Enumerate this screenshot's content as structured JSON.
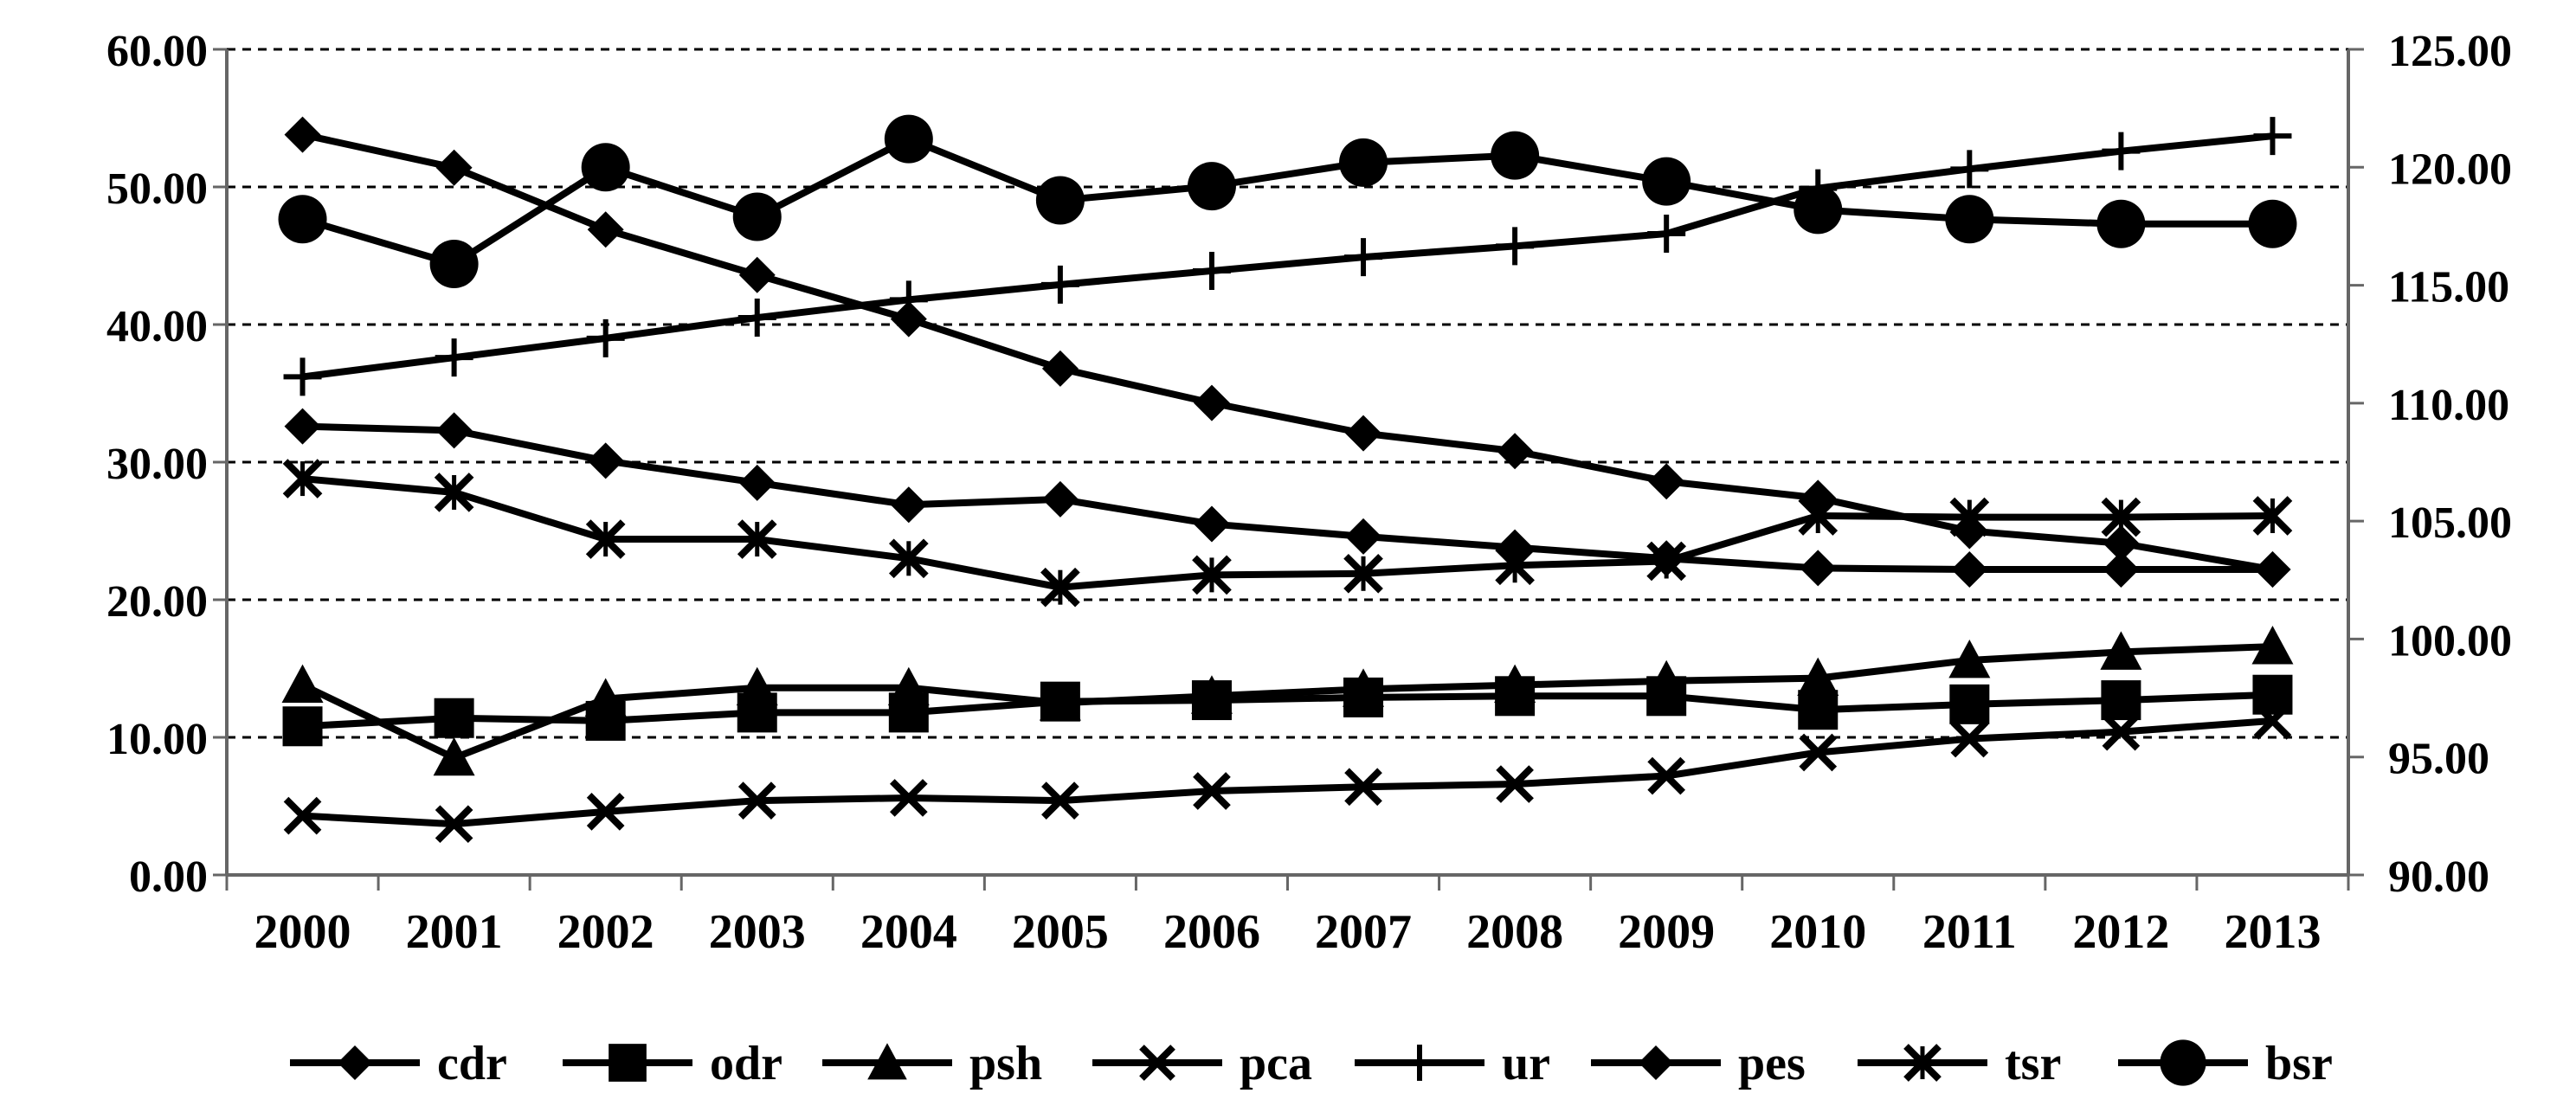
{
  "chart_data": {
    "type": "line",
    "title": "",
    "xlabel": "",
    "ylabel": "",
    "categories": [
      "2000",
      "2001",
      "2002",
      "2003",
      "2004",
      "2005",
      "2006",
      "2007",
      "2008",
      "2009",
      "2010",
      "2011",
      "2012",
      "2013"
    ],
    "y_left": {
      "range": [
        0,
        60
      ],
      "ticks": [
        "0.00",
        "10.00",
        "20.00",
        "30.00",
        "40.00",
        "50.00",
        "60.00"
      ]
    },
    "y_right": {
      "range": [
        90,
        125
      ],
      "ticks": [
        "90.00",
        "95.00",
        "100.00",
        "105.00",
        "110.00",
        "115.00",
        "120.00",
        "125.00"
      ]
    },
    "grid": "horizontal dashed",
    "legend_position": "bottom",
    "series": [
      {
        "name": "cdr",
        "marker": "diamond",
        "axis": "left",
        "values": [
          53.8,
          51.4,
          46.9,
          43.6,
          40.4,
          36.8,
          34.3,
          32.1,
          30.8,
          28.6,
          27.4,
          25.0,
          24.1,
          22.2
        ]
      },
      {
        "name": "odr",
        "marker": "square",
        "axis": "left",
        "values": [
          10.8,
          11.4,
          11.2,
          11.8,
          11.8,
          12.6,
          12.7,
          12.9,
          13.0,
          13.0,
          12.0,
          12.4,
          12.7,
          13.1
        ]
      },
      {
        "name": "psh",
        "marker": "triangle",
        "axis": "left",
        "values": [
          13.8,
          8.5,
          12.8,
          13.6,
          13.6,
          12.5,
          13.0,
          13.5,
          13.8,
          14.1,
          14.3,
          15.6,
          16.2,
          16.6
        ]
      },
      {
        "name": "pca",
        "marker": "x",
        "axis": "left",
        "values": [
          4.3,
          3.7,
          4.6,
          5.4,
          5.6,
          5.4,
          6.1,
          6.4,
          6.6,
          7.2,
          8.9,
          9.9,
          10.4,
          11.2
        ]
      },
      {
        "name": "ur",
        "marker": "plus",
        "axis": "left",
        "values": [
          36.2,
          37.6,
          39.0,
          40.5,
          41.8,
          42.9,
          43.9,
          44.9,
          45.7,
          46.6,
          49.9,
          51.3,
          52.6,
          53.7
        ]
      },
      {
        "name": "pes",
        "marker": "diamond",
        "axis": "left",
        "values": [
          32.6,
          32.3,
          30.1,
          28.5,
          26.9,
          27.3,
          25.5,
          24.6,
          23.8,
          23.0,
          22.3,
          22.2,
          22.2,
          22.2
        ]
      },
      {
        "name": "tsr",
        "marker": "asterisk",
        "axis": "left",
        "values": [
          28.8,
          27.8,
          24.4,
          24.4,
          23.0,
          20.9,
          21.8,
          21.9,
          22.5,
          22.8,
          26.1,
          26.0,
          26.0,
          26.1
        ]
      },
      {
        "name": "bsr",
        "marker": "circle",
        "axis": "right",
        "values": [
          117.8,
          115.9,
          120.0,
          117.9,
          121.2,
          118.6,
          119.2,
          120.2,
          120.5,
          119.4,
          118.2,
          117.8,
          117.6,
          117.6
        ]
      }
    ]
  }
}
